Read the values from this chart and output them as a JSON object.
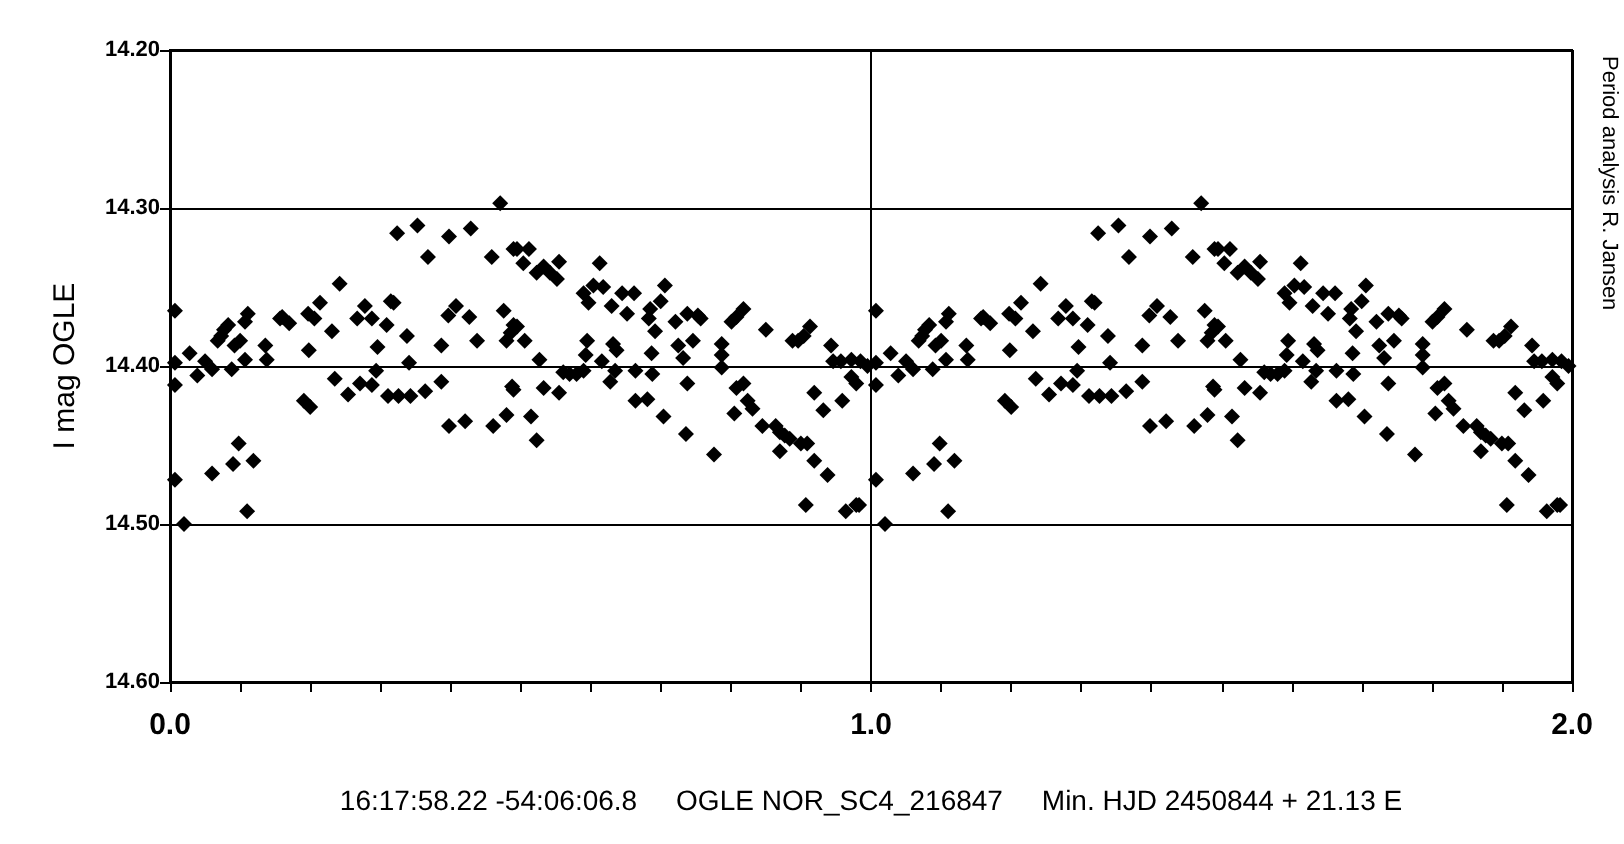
{
  "chart_data": {
    "type": "scatter",
    "xlabel": "16:17:58.22 -54:06:06.8     OGLE NOR_SC4_216847     Min. HJD 2450844 + 21.13 E",
    "ylabel": "I mag OGLE",
    "annotations": [
      "Period analysis R. Jansen"
    ],
    "xlim": [
      0,
      2
    ],
    "xticks": [
      {
        "value": 0,
        "label": "0.0"
      },
      {
        "value": 0.1,
        "label": null
      },
      {
        "value": 0.2,
        "label": null
      },
      {
        "value": 0.3,
        "label": null
      },
      {
        "value": 0.4,
        "label": null
      },
      {
        "value": 0.5,
        "label": null
      },
      {
        "value": 0.6,
        "label": null
      },
      {
        "value": 0.7,
        "label": null
      },
      {
        "value": 0.8,
        "label": null
      },
      {
        "value": 0.9,
        "label": null
      },
      {
        "value": 1,
        "label": "1.0"
      },
      {
        "value": 1.1,
        "label": null
      },
      {
        "value": 1.2,
        "label": null
      },
      {
        "value": 1.3,
        "label": null
      },
      {
        "value": 1.4,
        "label": null
      },
      {
        "value": 1.5,
        "label": null
      },
      {
        "value": 1.6,
        "label": null
      },
      {
        "value": 1.7,
        "label": null
      },
      {
        "value": 1.8,
        "label": null
      },
      {
        "value": 1.9,
        "label": null
      },
      {
        "value": 2,
        "label": "2.0"
      }
    ],
    "ylim": [
      14.6,
      14.2
    ],
    "yticks": [
      {
        "value": 14.2,
        "label": "14.20"
      },
      {
        "value": 14.3,
        "label": "14.30"
      },
      {
        "value": 14.4,
        "label": "14.40"
      },
      {
        "value": 14.5,
        "label": "14.50"
      },
      {
        "value": 14.6,
        "label": "14.60"
      }
    ],
    "grid": true,
    "marker": "diamond",
    "series": [
      {
        "color": "#000000",
        "x": [
          0.007,
          0.007,
          0.007,
          0.007,
          0.02,
          0.028,
          0.039,
          0.05,
          0.06,
          0.06,
          0.068,
          0.073,
          0.077,
          0.083,
          0.088,
          0.09,
          0.092,
          0.098,
          0.1,
          0.107,
          0.107,
          0.111,
          0.11,
          0.119,
          0.136,
          0.138,
          0.157,
          0.16,
          0.17,
          0.191,
          0.2,
          0.198,
          0.197,
          0.206,
          0.214,
          0.231,
          0.235,
          0.242,
          0.254,
          0.267,
          0.271,
          0.278,
          0.288,
          0.288,
          0.296,
          0.294,
          0.309,
          0.311,
          0.315,
          0.319,
          0.324,
          0.326,
          0.338,
          0.341,
          0.343,
          0.353,
          0.364,
          0.368,
          0.387,
          0.387,
          0.397,
          0.398,
          0.398,
          0.408,
          0.421,
          0.427,
          0.429,
          0.438,
          0.459,
          0.461,
          0.471,
          0.476,
          0.48,
          0.48,
          0.486,
          0.49,
          0.488,
          0.49,
          0.495,
          0.512,
          0.504,
          0.523,
          0.533,
          0.542,
          0.552,
          0.555,
          0.495,
          0.506,
          0.49,
          0.527,
          0.533,
          0.555,
          0.515,
          0.523,
          0.561,
          0.57,
          0.58,
          0.59,
          0.59,
          0.597,
          0.595,
          0.593,
          0.604,
          0.613,
          0.618,
          0.616,
          0.628,
          0.63,
          0.632,
          0.637,
          0.635,
          0.645,
          0.652,
          0.662,
          0.664,
          0.664,
          0.681,
          0.683,
          0.687,
          0.688,
          0.685,
          0.692,
          0.7,
          0.706,
          0.704,
          0.721,
          0.725,
          0.732,
          0.736,
          0.738,
          0.738,
          0.746,
          0.753,
          0.757,
          0.776,
          0.787,
          0.787,
          0.787,
          0.801,
          0.808,
          0.818,
          0.805,
          0.808,
          0.818,
          0.824,
          0.831,
          0.845,
          0.85,
          0.864,
          0.87,
          0.87,
          0.877,
          0.884,
          0.888,
          0.896,
          0.904,
          0.9,
          0.909,
          0.913,
          0.907,
          0.919,
          0.919,
          0.932,
          0.938,
          0.943,
          0.946,
          0.957,
          0.959,
          0.964,
          0.972,
          0.972,
          0.979,
          0.979,
          0.985,
          0.983,
          0.995,
          1.007,
          1.007,
          1.007,
          1.007,
          1.02,
          1.028,
          1.039,
          1.05,
          1.06,
          1.06,
          1.068,
          1.073,
          1.077,
          1.083,
          1.088,
          1.09,
          1.092,
          1.098,
          1.1,
          1.107,
          1.107,
          1.111,
          1.11,
          1.119,
          1.136,
          1.138,
          1.157,
          1.16,
          1.17,
          1.191,
          1.2,
          1.198,
          1.197,
          1.206,
          1.214,
          1.231,
          1.235,
          1.242,
          1.254,
          1.267,
          1.271,
          1.278,
          1.288,
          1.288,
          1.296,
          1.294,
          1.309,
          1.311,
          1.315,
          1.319,
          1.324,
          1.326,
          1.338,
          1.341,
          1.343,
          1.353,
          1.364,
          1.368,
          1.387,
          1.387,
          1.397,
          1.398,
          1.398,
          1.408,
          1.421,
          1.427,
          1.429,
          1.438,
          1.459,
          1.461,
          1.471,
          1.476,
          1.48,
          1.48,
          1.486,
          1.49,
          1.488,
          1.49,
          1.495,
          1.512,
          1.504,
          1.523,
          1.533,
          1.542,
          1.552,
          1.555,
          1.495,
          1.506,
          1.49,
          1.527,
          1.533,
          1.555,
          1.515,
          1.523,
          1.561,
          1.57,
          1.58,
          1.59,
          1.59,
          1.597,
          1.595,
          1.593,
          1.604,
          1.613,
          1.618,
          1.616,
          1.628,
          1.63,
          1.632,
          1.637,
          1.635,
          1.645,
          1.652,
          1.662,
          1.664,
          1.664,
          1.681,
          1.683,
          1.687,
          1.688,
          1.685,
          1.692,
          1.7,
          1.706,
          1.704,
          1.721,
          1.725,
          1.732,
          1.736,
          1.738,
          1.738,
          1.746,
          1.753,
          1.757,
          1.776,
          1.787,
          1.787,
          1.787,
          1.801,
          1.808,
          1.818,
          1.805,
          1.808,
          1.818,
          1.824,
          1.831,
          1.845,
          1.85,
          1.864,
          1.87,
          1.87,
          1.877,
          1.884,
          1.888,
          1.896,
          1.904,
          1.9,
          1.909,
          1.913,
          1.907,
          1.919,
          1.919,
          1.932,
          1.938,
          1.943,
          1.946,
          1.957,
          1.959,
          1.964,
          1.972,
          1.972,
          1.979,
          1.979,
          1.985,
          1.983,
          1.995
        ],
        "values": [
          14.365,
          14.398,
          14.412,
          14.472,
          14.5,
          14.392,
          14.406,
          14.397,
          14.402,
          14.468,
          14.384,
          14.381,
          14.377,
          14.374,
          14.402,
          14.462,
          14.387,
          14.449,
          14.384,
          14.396,
          14.372,
          14.367,
          14.492,
          14.46,
          14.387,
          14.396,
          14.37,
          14.369,
          14.373,
          14.422,
          14.426,
          14.39,
          14.367,
          14.37,
          14.36,
          14.378,
          14.408,
          14.348,
          14.418,
          14.37,
          14.411,
          14.362,
          14.37,
          14.412,
          14.388,
          14.403,
          14.374,
          14.419,
          14.359,
          14.36,
          14.316,
          14.419,
          14.381,
          14.398,
          14.419,
          14.311,
          14.416,
          14.331,
          14.41,
          14.387,
          14.368,
          14.318,
          14.438,
          14.362,
          14.435,
          14.369,
          14.313,
          14.384,
          14.331,
          14.438,
          14.297,
          14.365,
          14.384,
          14.431,
          14.379,
          14.326,
          14.413,
          14.374,
          14.326,
          14.326,
          14.335,
          14.341,
          14.337,
          14.341,
          14.345,
          14.334,
          14.375,
          14.384,
          14.415,
          14.396,
          14.414,
          14.417,
          14.432,
          14.447,
          14.404,
          14.405,
          14.405,
          14.403,
          14.354,
          14.36,
          14.384,
          14.393,
          14.349,
          14.335,
          14.35,
          14.397,
          14.41,
          14.362,
          14.386,
          14.39,
          14.403,
          14.354,
          14.367,
          14.354,
          14.403,
          14.422,
          14.421,
          14.37,
          14.392,
          14.405,
          14.364,
          14.378,
          14.359,
          14.349,
          14.432,
          14.372,
          14.387,
          14.395,
          14.443,
          14.411,
          14.367,
          14.384,
          14.368,
          14.37,
          14.456,
          14.386,
          14.401,
          14.393,
          14.372,
          14.369,
          14.364,
          14.43,
          14.414,
          14.411,
          14.422,
          14.427,
          14.438,
          14.377,
          14.438,
          14.442,
          14.454,
          14.444,
          14.446,
          14.384,
          14.384,
          14.381,
          14.449,
          14.449,
          14.375,
          14.488,
          14.417,
          14.46,
          14.428,
          14.469,
          14.387,
          14.397,
          14.397,
          14.422,
          14.492,
          14.396,
          14.407,
          14.411,
          14.488,
          14.397,
          14.488,
          14.4,
          14.365,
          14.398,
          14.412,
          14.472,
          14.5,
          14.392,
          14.406,
          14.397,
          14.402,
          14.468,
          14.384,
          14.381,
          14.377,
          14.374,
          14.402,
          14.462,
          14.387,
          14.449,
          14.384,
          14.396,
          14.372,
          14.367,
          14.492,
          14.46,
          14.387,
          14.396,
          14.37,
          14.369,
          14.373,
          14.422,
          14.426,
          14.39,
          14.367,
          14.37,
          14.36,
          14.378,
          14.408,
          14.348,
          14.418,
          14.37,
          14.411,
          14.362,
          14.37,
          14.412,
          14.388,
          14.403,
          14.374,
          14.419,
          14.359,
          14.36,
          14.316,
          14.419,
          14.381,
          14.398,
          14.419,
          14.311,
          14.416,
          14.331,
          14.41,
          14.387,
          14.368,
          14.318,
          14.438,
          14.362,
          14.435,
          14.369,
          14.313,
          14.384,
          14.331,
          14.438,
          14.297,
          14.365,
          14.384,
          14.431,
          14.379,
          14.326,
          14.413,
          14.374,
          14.326,
          14.326,
          14.335,
          14.341,
          14.337,
          14.341,
          14.345,
          14.334,
          14.375,
          14.384,
          14.415,
          14.396,
          14.414,
          14.417,
          14.432,
          14.447,
          14.404,
          14.405,
          14.405,
          14.403,
          14.354,
          14.36,
          14.384,
          14.393,
          14.349,
          14.335,
          14.35,
          14.397,
          14.41,
          14.362,
          14.386,
          14.39,
          14.403,
          14.354,
          14.367,
          14.354,
          14.403,
          14.422,
          14.421,
          14.37,
          14.392,
          14.405,
          14.364,
          14.378,
          14.359,
          14.349,
          14.432,
          14.372,
          14.387,
          14.395,
          14.443,
          14.411,
          14.367,
          14.384,
          14.368,
          14.37,
          14.456,
          14.386,
          14.401,
          14.393,
          14.372,
          14.369,
          14.364,
          14.43,
          14.414,
          14.411,
          14.422,
          14.427,
          14.438,
          14.377,
          14.438,
          14.442,
          14.454,
          14.444,
          14.446,
          14.384,
          14.384,
          14.381,
          14.449,
          14.449,
          14.375,
          14.488,
          14.417,
          14.46,
          14.428,
          14.469,
          14.387,
          14.397,
          14.397,
          14.422,
          14.492,
          14.396,
          14.407,
          14.411,
          14.488,
          14.397,
          14.488,
          14.4
        ]
      }
    ]
  }
}
